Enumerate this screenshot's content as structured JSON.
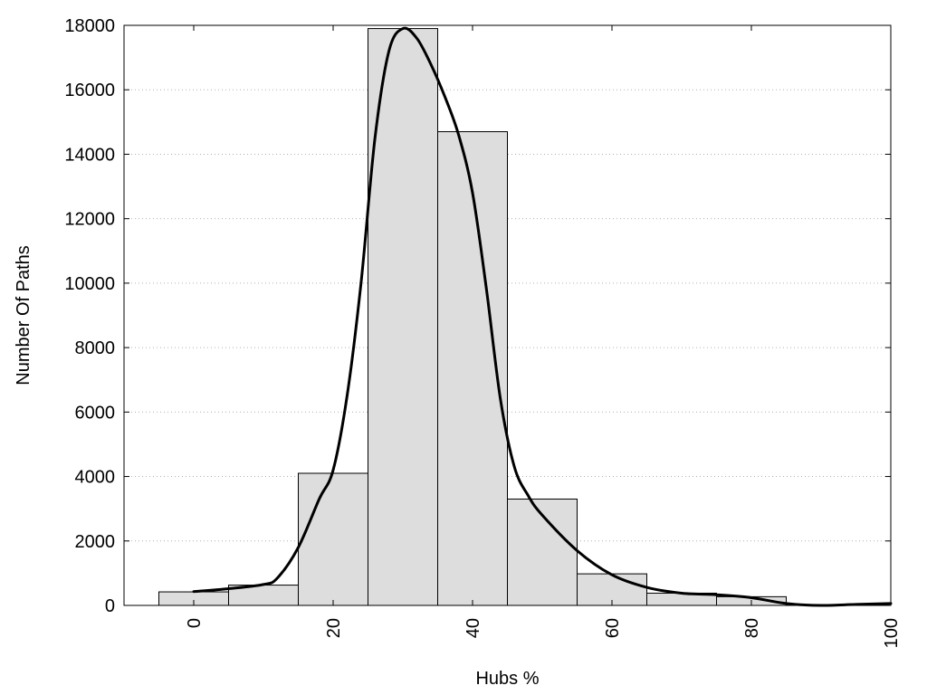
{
  "chart_data": {
    "type": "bar",
    "title": "",
    "xlabel": "Hubs %",
    "ylabel": "Number Of Paths",
    "xlim": [
      -10,
      100
    ],
    "ylim": [
      0,
      18000
    ],
    "grid": "horizontal dotted",
    "x_ticks": [
      0,
      20,
      40,
      60,
      80,
      100
    ],
    "y_ticks": [
      0,
      2000,
      4000,
      6000,
      8000,
      10000,
      12000,
      14000,
      16000,
      18000
    ],
    "bar_width": 10,
    "bars": [
      {
        "x": 0,
        "value": 420
      },
      {
        "x": 10,
        "value": 630
      },
      {
        "x": 20,
        "value": 4100
      },
      {
        "x": 30,
        "value": 17900
      },
      {
        "x": 40,
        "value": 14700
      },
      {
        "x": 50,
        "value": 3300
      },
      {
        "x": 60,
        "value": 980
      },
      {
        "x": 70,
        "value": 380
      },
      {
        "x": 80,
        "value": 270
      },
      {
        "x": 90,
        "value": 0
      }
    ],
    "curve": {
      "x": [
        0,
        5,
        10,
        12,
        15,
        18,
        20,
        22,
        24,
        26,
        28,
        30,
        32,
        34,
        36,
        38,
        40,
        42,
        44,
        46,
        48,
        50,
        55,
        60,
        65,
        70,
        75,
        80,
        85,
        90,
        95,
        100
      ],
      "y": [
        430,
        520,
        650,
        850,
        1800,
        3300,
        4200,
        6500,
        10000,
        14500,
        17200,
        17900,
        17600,
        16800,
        15800,
        14600,
        12800,
        9800,
        6400,
        4300,
        3400,
        2800,
        1700,
        950,
        560,
        380,
        330,
        240,
        60,
        0,
        30,
        60
      ]
    },
    "colors": {
      "bar_fill": "#dddddd",
      "bar_stroke": "#000000",
      "curve": "#000000",
      "grid": "#b0b0b0"
    }
  }
}
